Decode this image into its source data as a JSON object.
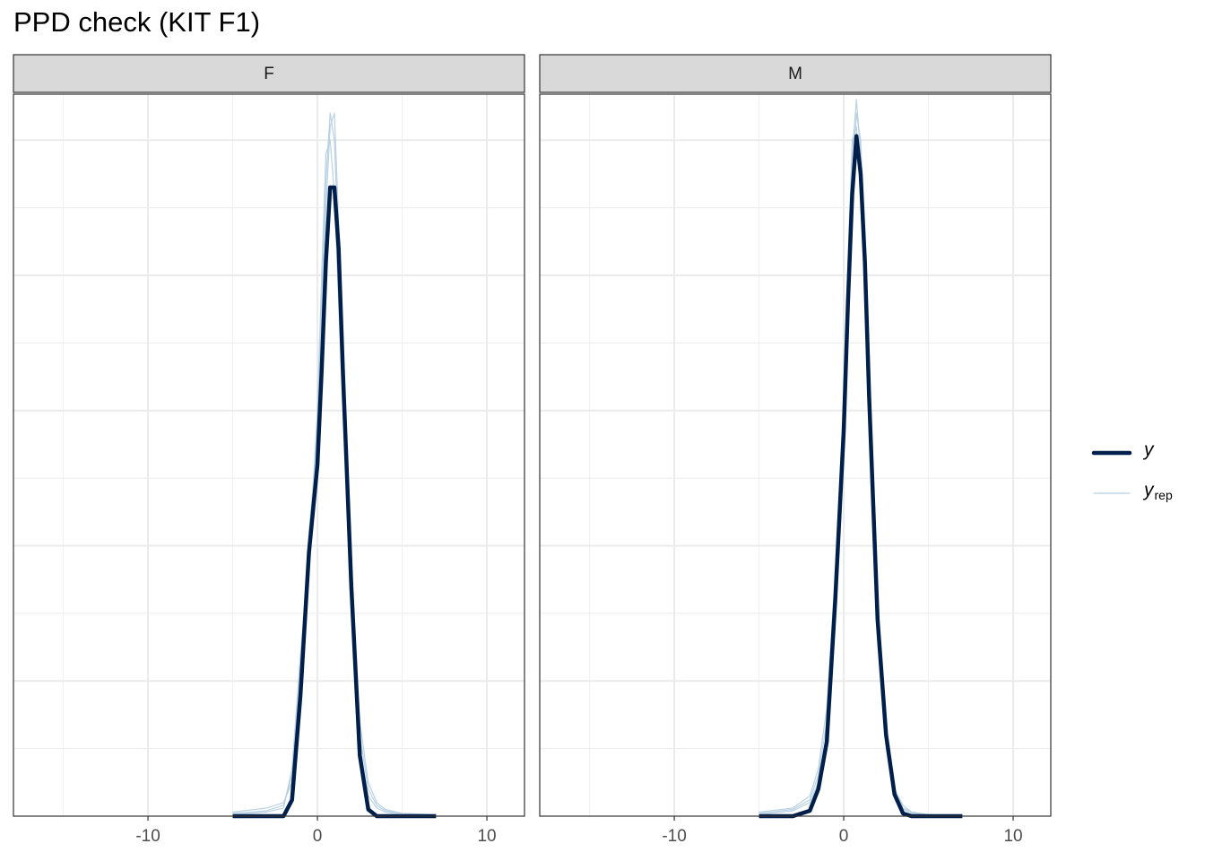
{
  "chart_data": {
    "type": "line",
    "title": "PPD check (KIT F1)",
    "xlim": [
      -17.94,
      12.22
    ],
    "ylim": [
      0,
      0.534
    ],
    "xticks": [
      -10,
      0,
      10
    ],
    "x_minor_grid": [
      -15,
      -5,
      5
    ],
    "ygrid": [
      0.05,
      0.1,
      0.15,
      0.2,
      0.25,
      0.3,
      0.35,
      0.4,
      0.45,
      0.5
    ],
    "grid": true,
    "legend": "right",
    "x": [
      -5,
      -3,
      -2,
      -1.5,
      -1,
      -0.5,
      0,
      0.25,
      0.5,
      0.75,
      1,
      1.25,
      1.5,
      2,
      2.5,
      3,
      3.5,
      4,
      5,
      7
    ],
    "series": [
      {
        "name": "y",
        "color": "#011f4b"
      },
      {
        "name": "y",
        "subscript": "rep",
        "color": "#b3cde0"
      }
    ],
    "panels": [
      {
        "label": "F",
        "values": [
          0,
          0,
          0,
          0.012,
          0.09,
          0.195,
          0.26,
          0.33,
          0.41,
          0.465,
          0.465,
          0.42,
          0.33,
          0.17,
          0.045,
          0.005,
          0,
          0,
          0,
          0
        ],
        "draws": [
          [
            0.002,
            0.004,
            0.008,
            0.03,
            0.11,
            0.2,
            0.29,
            0.38,
            0.47,
            0.52,
            0.5,
            0.42,
            0.32,
            0.16,
            0.06,
            0.02,
            0.008,
            0.004,
            0.002,
            0.001
          ],
          [
            0.003,
            0.006,
            0.01,
            0.025,
            0.1,
            0.21,
            0.28,
            0.36,
            0.45,
            0.51,
            0.52,
            0.44,
            0.34,
            0.15,
            0.05,
            0.015,
            0.006,
            0.003,
            0.001,
            0
          ],
          [
            0.001,
            0.003,
            0.006,
            0.035,
            0.12,
            0.19,
            0.3,
            0.4,
            0.49,
            0.5,
            0.46,
            0.38,
            0.3,
            0.17,
            0.07,
            0.025,
            0.01,
            0.005,
            0.002,
            0.001
          ]
        ]
      },
      {
        "label": "M",
        "values": [
          0,
          0,
          0.004,
          0.02,
          0.055,
          0.16,
          0.285,
          0.38,
          0.46,
          0.503,
          0.475,
          0.41,
          0.31,
          0.145,
          0.06,
          0.016,
          0.002,
          0,
          0,
          0
        ],
        "draws": [
          [
            0.002,
            0.005,
            0.012,
            0.03,
            0.07,
            0.17,
            0.3,
            0.4,
            0.49,
            0.53,
            0.49,
            0.4,
            0.3,
            0.14,
            0.06,
            0.02,
            0.008,
            0.003,
            0.001,
            0
          ],
          [
            0.001,
            0.004,
            0.01,
            0.025,
            0.06,
            0.15,
            0.28,
            0.37,
            0.47,
            0.52,
            0.5,
            0.42,
            0.32,
            0.15,
            0.065,
            0.02,
            0.006,
            0.003,
            0.001,
            0
          ],
          [
            0.003,
            0.006,
            0.015,
            0.035,
            0.08,
            0.18,
            0.31,
            0.41,
            0.5,
            0.51,
            0.46,
            0.38,
            0.29,
            0.13,
            0.05,
            0.015,
            0.005,
            0.002,
            0.001,
            0
          ]
        ]
      }
    ]
  }
}
